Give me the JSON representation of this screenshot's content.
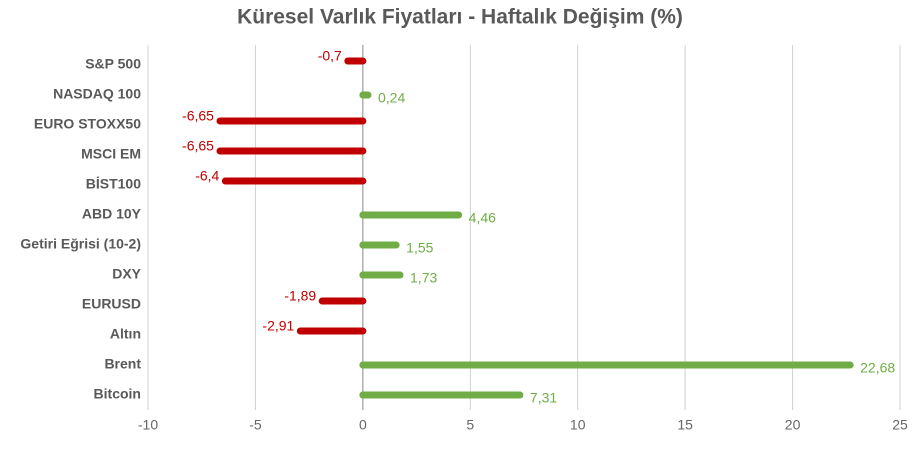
{
  "chart_data": {
    "type": "hbar",
    "title": "Küresel Varlık Fiyatları - Haftalık Değişim (%)",
    "categories": [
      "S&P 500",
      "NASDAQ 100",
      "EURO STOXX50",
      "MSCI EM",
      "BİST100",
      "ABD 10Y",
      "Getiri Eğrisi (10-2)",
      "DXY",
      "EURUSD",
      "Altın",
      "Brent",
      "Bitcoin"
    ],
    "values": [
      -0.7,
      0.24,
      -6.65,
      -6.65,
      -6.4,
      4.46,
      1.55,
      1.73,
      -1.89,
      -2.91,
      22.68,
      7.31
    ],
    "value_labels": [
      "-0,7",
      "0,24",
      "-6,65",
      "-6,65",
      "-6,4",
      "4,46",
      "1,55",
      "1,73",
      "-1,89",
      "-2,91",
      "22,68",
      "7,31"
    ],
    "negative_color": "#c00000",
    "positive_color": "#70ad47",
    "xlim": [
      -10,
      25
    ],
    "xticks": [
      -10,
      -5,
      0,
      5,
      10,
      15,
      20,
      25
    ],
    "grid": true
  }
}
